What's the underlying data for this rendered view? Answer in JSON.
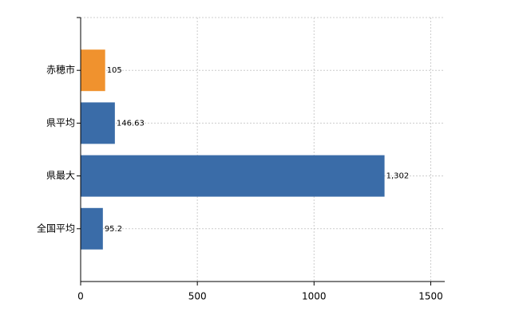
{
  "chart_data": {
    "type": "barh",
    "categories": [
      "赤穂市",
      "県平均",
      "県最大",
      "全国平均"
    ],
    "values": [
      105,
      146.63,
      1302,
      95.2
    ],
    "value_labels": [
      "105",
      "146.63",
      "1,302",
      "95.2"
    ],
    "colors": [
      "#f0922e",
      "#3a6ca8",
      "#3a6ca8",
      "#3a6ca8"
    ],
    "xlim": [
      0,
      1560
    ],
    "xticks": [
      0,
      500,
      1000,
      1500
    ],
    "grid": true
  }
}
